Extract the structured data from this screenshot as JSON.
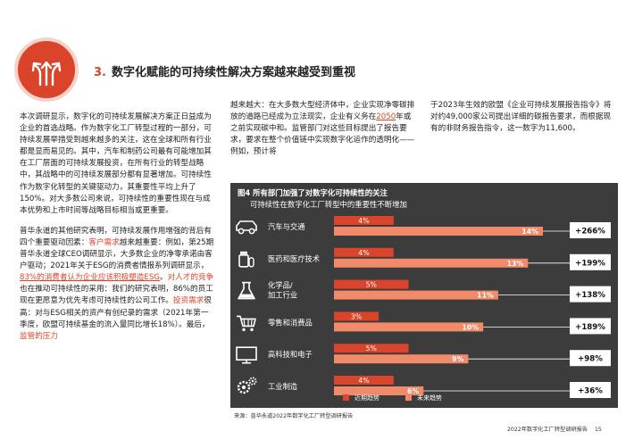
{
  "header": {
    "section_number": "3.",
    "section_title": "数字化赋能的可持续性解决方案越来越受到重视",
    "icon": "diverging-arrows-icon",
    "accent_color": "#d9442a"
  },
  "column1": {
    "p1": "本次调研显示，数字化的可持续发展解决方案正日益成为企业的首选战略。作为数字化工厂转型过程的一部分，可持续发展举措受到越来越多的关注，这在全球和所有行业都是显而易见的。其中，汽车和制药公司最有可能增加其在工厂层面的可持续发展投资，在所有行业的转型战略中，其战略中的可持续发展部分都有显著增加。可持续性作为数字化转型的关键驱动力，其重要性平均上升了150%。对大多数公司来说，可持续性的重要性现在与成本优势和上市时间等战略目标相当或更重要。",
    "p2_a": "普华永道的其他研究表明，可持续发展作用增强的背后有四个重要驱动因素：",
    "p2_b": "客户需求",
    "p2_c": "越来越重要：例如，第25期普华永道全球CEO调研显示，大多数企业的净零承诺由客户驱动；2021年关于ESG的消费者情报系列调研显示，",
    "p2_d": "83%的消费者认为企业应该积极塑造ESG",
    "p2_e": "。",
    "p2_f": "对人才的竞争",
    "p2_g": "也在推动可持续性的采用：我们的研究表明，86%的员工现在更愿意为优先考虑可持续性的公司工作。",
    "p2_h": "投资需求",
    "p2_i": "很高：对与ESG相关的资产有创纪录的需求（2021年第一季度，欧盟可持续基金的流入量同比增长18%）。最后，",
    "p2_j": "监管的压力"
  },
  "column2": {
    "a": "越来越大：在大多数大型经济体中，企业实现净零碳排放的道路已经成为立法现实，企业有义务在",
    "b": "2050",
    "c": "年或之前实现碳中和。监管部门对这些目标提出了报告要求，要求在整个价值链中实现数字化运作的透明化——例如，预计将"
  },
  "column3": {
    "text": "于2023年生效的欧盟《企业可持续发展报告指令》将对约49,000家公司提出详细的碳报告要求，而根据现有的非财务报告指令，这一数字为11,600。"
  },
  "chart_data": {
    "type": "bar",
    "title": "图4 所有部门加强了对数字化可持续性的关注",
    "subtitle": "可持续性在数字化工厂转型中的重要性不断增加",
    "categories": [
      "汽车与交通",
      "医药和医疗技术",
      "化学品/加工行业",
      "零售和消费品",
      "高科技和电子",
      "工业制造"
    ],
    "category_lines": [
      [
        "汽车与交通"
      ],
      [
        "医药和医疗技术"
      ],
      [
        "化学品/",
        "加工行业"
      ],
      [
        "零售和消费品"
      ],
      [
        "高科技和电子"
      ],
      [
        "工业制造"
      ]
    ],
    "icons": [
      "car-icon",
      "pill-bottle-icon",
      "flask-icon",
      "shopping-cart-icon",
      "monitor-icon",
      "gears-icon"
    ],
    "series": [
      {
        "name": "近期趋势",
        "values": [
          4,
          4,
          5,
          3,
          5,
          4
        ],
        "labels": [
          "4%",
          "4%",
          "5%",
          "3%",
          "5%",
          "4%"
        ],
        "color": "#d9442a"
      },
      {
        "name": "未来趋势",
        "values": [
          14,
          13,
          11,
          10,
          9,
          6
        ],
        "labels": [
          "14%",
          "13%",
          "11%",
          "10%",
          "9%",
          "6%"
        ],
        "color": "#f08a6a"
      }
    ],
    "change_labels": [
      "+266%",
      "+199%",
      "+138%",
      "+189%",
      "+98%",
      "+36%"
    ],
    "xlim": [
      0,
      14
    ]
  },
  "source": "来源：普华永道2022年数字化工厂转型调研报告",
  "footer": {
    "title": "2022年数字化工厂转型调研报告",
    "page": "15"
  }
}
